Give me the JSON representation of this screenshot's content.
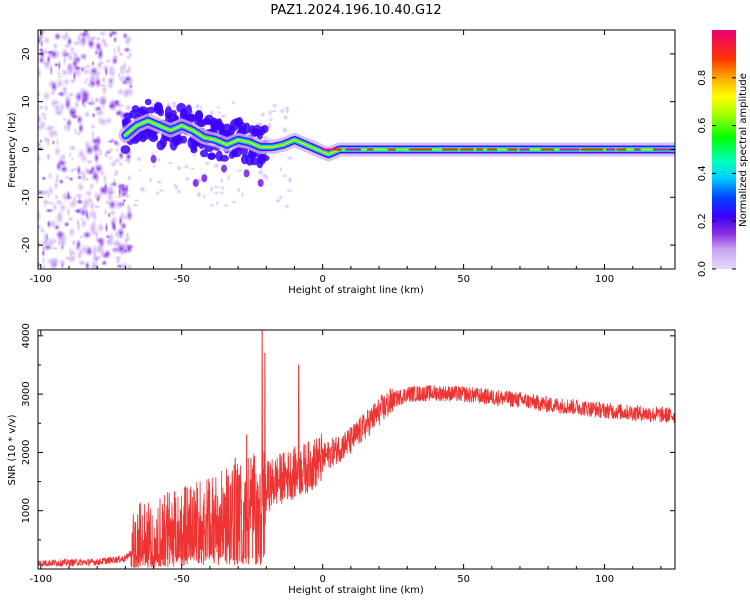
{
  "title": "PAZ1.2024.196.10.40.G12",
  "colors": {
    "snr_line": "#ee3333",
    "axis": "#000000"
  },
  "chart_data": [
    {
      "type": "heatmap",
      "xlabel": "Height of straight line (km)",
      "ylabel": "Frequency (Hz)",
      "xlim": [
        -101,
        125
      ],
      "ylim": [
        -25,
        25
      ],
      "x_ticks": [
        -100,
        -50,
        0,
        50,
        100
      ],
      "x_tick_labels": [
        "-100",
        "-50",
        "0",
        "50",
        "100"
      ],
      "y_ticks": [
        -20,
        -10,
        0,
        10,
        20
      ],
      "y_tick_labels": [
        "-20",
        "-10",
        "0",
        "10",
        "20"
      ],
      "colorbar": {
        "label": "Normalized spectral amplitude",
        "range": [
          0,
          1
        ],
        "ticks": [
          0.0,
          0.2,
          0.4,
          0.6,
          0.8
        ],
        "tick_labels": [
          "0.0",
          "0.2",
          "0.4",
          "0.6",
          "0.8"
        ]
      },
      "ridge": [
        [
          -70,
          3
        ],
        [
          -66,
          5
        ],
        [
          -62,
          6
        ],
        [
          -58,
          5
        ],
        [
          -54,
          4
        ],
        [
          -50,
          5
        ],
        [
          -46,
          4
        ],
        [
          -42,
          2.5
        ],
        [
          -38,
          2
        ],
        [
          -34,
          1
        ],
        [
          -30,
          2
        ],
        [
          -26,
          1.5
        ],
        [
          -22,
          0.5
        ],
        [
          -18,
          0.5
        ],
        [
          -14,
          1
        ],
        [
          -10,
          2
        ],
        [
          -6,
          1
        ],
        [
          -2,
          0
        ],
        [
          2,
          -1
        ],
        [
          6,
          0
        ],
        [
          125,
          0
        ]
      ],
      "scatter_region_x": [
        -101,
        -70
      ],
      "grid": false
    },
    {
      "type": "line",
      "xlabel": "Height of straight line (km)",
      "ylabel": "SNR (10 * v/v)",
      "xlim": [
        -101,
        125
      ],
      "ylim": [
        0,
        4100
      ],
      "x_ticks": [
        -100,
        -50,
        0,
        50,
        100
      ],
      "x_tick_labels": [
        "-100",
        "-50",
        "0",
        "50",
        "100"
      ],
      "y_ticks": [
        1000,
        2000,
        3000,
        4000
      ],
      "y_tick_labels": [
        "1000",
        "2000",
        "3000",
        "4000"
      ],
      "trend": [
        [
          -101,
          100
        ],
        [
          -80,
          120
        ],
        [
          -70,
          180
        ],
        [
          -65,
          450
        ],
        [
          -60,
          550
        ],
        [
          -55,
          650
        ],
        [
          -50,
          750
        ],
        [
          -45,
          850
        ],
        [
          -40,
          900
        ],
        [
          -35,
          1000
        ],
        [
          -30,
          1150
        ],
        [
          -25,
          1300
        ],
        [
          -20,
          1400
        ],
        [
          -15,
          1550
        ],
        [
          -10,
          1650
        ],
        [
          -5,
          1750
        ],
        [
          0,
          1900
        ],
        [
          5,
          2050
        ],
        [
          10,
          2200
        ],
        [
          15,
          2450
        ],
        [
          20,
          2700
        ],
        [
          25,
          2900
        ],
        [
          30,
          3000
        ],
        [
          40,
          3020
        ],
        [
          50,
          3000
        ],
        [
          60,
          2950
        ],
        [
          70,
          2900
        ],
        [
          80,
          2820
        ],
        [
          90,
          2780
        ],
        [
          100,
          2720
        ],
        [
          110,
          2680
        ],
        [
          125,
          2630
        ]
      ],
      "spikes": [
        [
          -21.5,
          4100
        ],
        [
          -20.5,
          3700
        ],
        [
          -8.5,
          3500
        ],
        [
          -27,
          2300
        ],
        [
          -31,
          1900
        ]
      ],
      "grid": false
    }
  ]
}
